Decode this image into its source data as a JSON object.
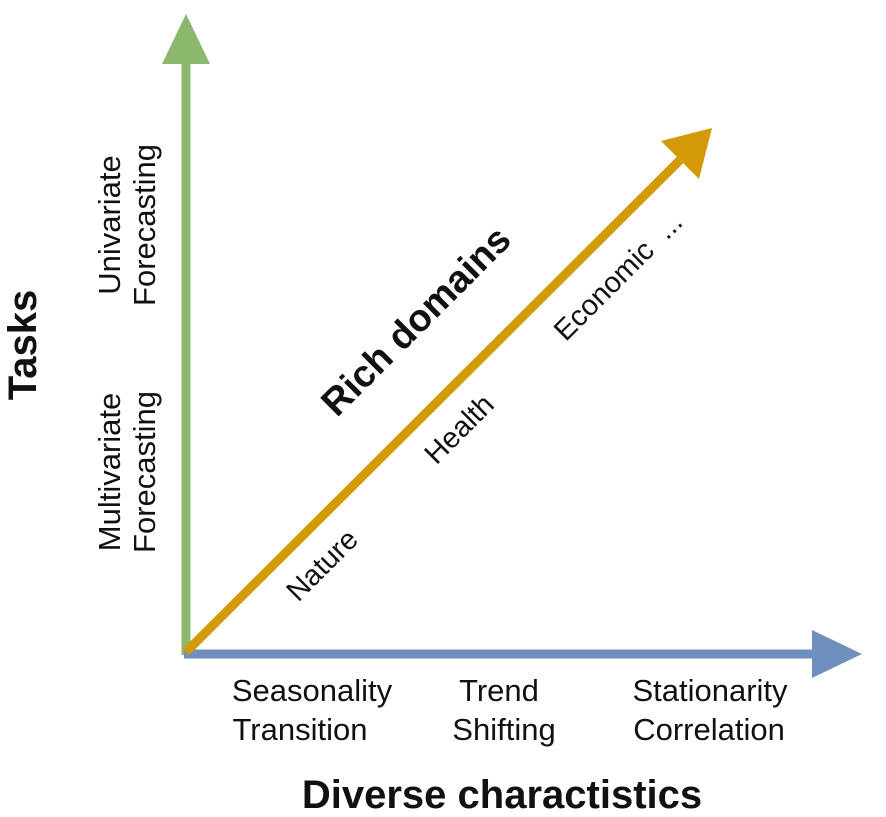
{
  "x_axis": {
    "title": "Diverse charactistics",
    "color": "#6f8fbf",
    "items": [
      {
        "line1": "Seasonality",
        "line2": "Transition"
      },
      {
        "line1": "Trend",
        "line2": "Shifting"
      },
      {
        "line1": "Stationarity",
        "line2": "Correlation"
      }
    ]
  },
  "y_axis": {
    "title": "Tasks",
    "color": "#8cb86d",
    "items": [
      {
        "line1": "Univariate",
        "line2": "Forecasting"
      },
      {
        "line1": "Multivariate",
        "line2": "Forecasting"
      }
    ]
  },
  "diagonal": {
    "title": "Rich domains",
    "color": "#d49a06",
    "items": [
      "Nature",
      "Health",
      "Economic  ..."
    ]
  }
}
